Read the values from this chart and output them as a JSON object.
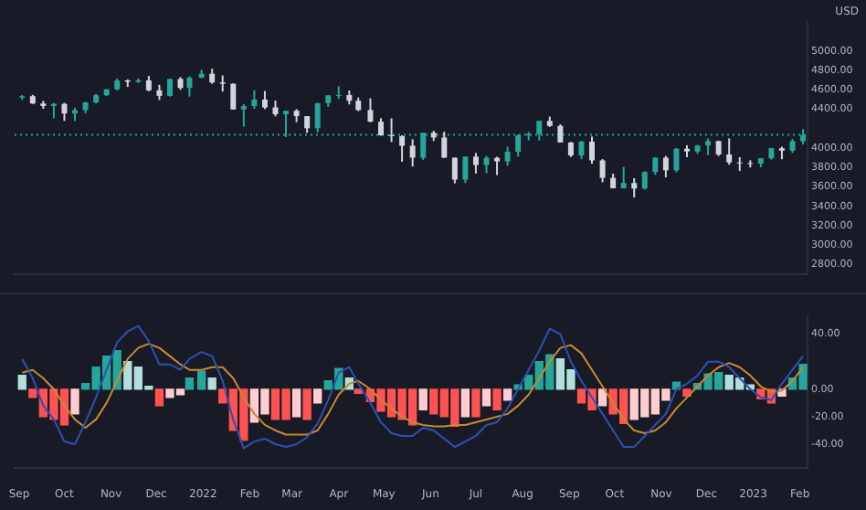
{
  "chart_data": [
    {
      "type": "candlestick",
      "ylabel": "USD",
      "tick_labels": "y",
      "grid": false,
      "x": [
        "2021-09-03",
        "2021-09-10",
        "2021-09-17",
        "2021-09-24",
        "2021-10-01",
        "2021-10-08",
        "2021-10-15",
        "2021-10-22",
        "2021-10-29",
        "2021-11-05",
        "2021-11-12",
        "2021-11-19",
        "2021-11-26",
        "2021-12-03",
        "2021-12-10",
        "2021-12-17",
        "2021-12-23",
        "2021-12-31",
        "2022-01-07",
        "2022-01-14",
        "2022-01-21",
        "2022-01-28",
        "2022-02-04",
        "2022-02-11",
        "2022-02-18",
        "2022-02-25",
        "2022-03-04",
        "2022-03-11",
        "2022-03-18",
        "2022-03-25",
        "2022-04-01",
        "2022-04-08",
        "2022-04-14",
        "2022-04-22",
        "2022-04-29",
        "2022-05-06",
        "2022-05-13",
        "2022-05-20",
        "2022-05-27",
        "2022-06-03",
        "2022-06-10",
        "2022-06-17",
        "2022-06-24",
        "2022-07-01",
        "2022-07-08",
        "2022-07-15",
        "2022-07-22",
        "2022-07-29",
        "2022-08-05",
        "2022-08-12",
        "2022-08-19",
        "2022-08-26",
        "2022-09-02",
        "2022-09-09",
        "2022-09-16",
        "2022-09-23",
        "2022-09-30",
        "2022-10-07",
        "2022-10-14",
        "2022-10-21",
        "2022-10-28",
        "2022-11-04",
        "2022-11-11",
        "2022-11-18",
        "2022-11-25",
        "2022-12-02",
        "2022-12-09",
        "2022-12-16",
        "2022-12-23",
        "2022-12-30",
        "2023-01-06",
        "2023-01-13",
        "2023-01-20",
        "2023-01-27",
        "2023-02-03"
      ],
      "ohlc": [
        [
          4520,
          4546,
          4495,
          4535
        ],
        [
          4535,
          4549,
          4455,
          4459
        ],
        [
          4459,
          4486,
          4405,
          4433
        ],
        [
          4433,
          4465,
          4306,
          4455
        ],
        [
          4455,
          4466,
          4280,
          4357
        ],
        [
          4357,
          4415,
          4278,
          4391
        ],
        [
          4391,
          4475,
          4360,
          4471
        ],
        [
          4471,
          4559,
          4460,
          4545
        ],
        [
          4545,
          4608,
          4536,
          4605
        ],
        [
          4605,
          4718,
          4595,
          4697
        ],
        [
          4697,
          4708,
          4630,
          4683
        ],
        [
          4683,
          4717,
          4672,
          4698
        ],
        [
          4698,
          4744,
          4585,
          4595
        ],
        [
          4595,
          4652,
          4495,
          4538
        ],
        [
          4538,
          4713,
          4530,
          4712
        ],
        [
          4712,
          4731,
          4600,
          4620
        ],
        [
          4620,
          4740,
          4530,
          4725
        ],
        [
          4725,
          4808,
          4720,
          4766
        ],
        [
          4766,
          4818,
          4662,
          4677
        ],
        [
          4677,
          4749,
          4582,
          4663
        ],
        [
          4663,
          4666,
          4395,
          4398
        ],
        [
          4398,
          4453,
          4222,
          4432
        ],
        [
          4432,
          4595,
          4405,
          4500
        ],
        [
          4500,
          4588,
          4401,
          4419
        ],
        [
          4419,
          4490,
          4327,
          4349
        ],
        [
          4349,
          4385,
          4114,
          4385
        ],
        [
          4385,
          4401,
          4267,
          4329
        ],
        [
          4329,
          4330,
          4157,
          4204
        ],
        [
          4204,
          4465,
          4161,
          4463
        ],
        [
          4463,
          4546,
          4424,
          4543
        ],
        [
          4543,
          4637,
          4507,
          4546
        ],
        [
          4546,
          4593,
          4450,
          4488
        ],
        [
          4488,
          4521,
          4381,
          4392
        ],
        [
          4392,
          4513,
          4267,
          4272
        ],
        [
          4272,
          4308,
          4128,
          4132
        ],
        [
          4132,
          4307,
          4062,
          4123
        ],
        [
          4123,
          4132,
          3859,
          4024
        ],
        [
          4024,
          4091,
          3810,
          3901
        ],
        [
          3901,
          4158,
          3876,
          4158
        ],
        [
          4158,
          4178,
          4074,
          4109
        ],
        [
          4109,
          4168,
          3900,
          3901
        ],
        [
          3901,
          3902,
          3636,
          3675
        ],
        [
          3675,
          3914,
          3639,
          3912
        ],
        [
          3912,
          3950,
          3738,
          3825
        ],
        [
          3825,
          3919,
          3742,
          3899
        ],
        [
          3899,
          3911,
          3722,
          3863
        ],
        [
          3863,
          4013,
          3818,
          3962
        ],
        [
          3962,
          4140,
          3911,
          4130
        ],
        [
          4130,
          4167,
          4080,
          4145
        ],
        [
          4145,
          4281,
          4079,
          4280
        ],
        [
          4280,
          4325,
          4218,
          4228
        ],
        [
          4228,
          4245,
          4057,
          4058
        ],
        [
          4058,
          4062,
          3907,
          3924
        ],
        [
          3924,
          4076,
          3886,
          4067
        ],
        [
          4067,
          4119,
          3838,
          3873
        ],
        [
          3873,
          3886,
          3647,
          3693
        ],
        [
          3693,
          3736,
          3584,
          3586
        ],
        [
          3586,
          3806,
          3584,
          3640
        ],
        [
          3640,
          3689,
          3491,
          3583
        ],
        [
          3583,
          3762,
          3573,
          3753
        ],
        [
          3753,
          3905,
          3725,
          3901
        ],
        [
          3901,
          3920,
          3698,
          3771
        ],
        [
          3771,
          4001,
          3751,
          3993
        ],
        [
          3993,
          4029,
          3906,
          3965
        ],
        [
          3965,
          4034,
          3940,
          4026
        ],
        [
          4026,
          4100,
          3928,
          4072
        ],
        [
          4072,
          4076,
          3918,
          3934
        ],
        [
          3934,
          4100,
          3828,
          3852
        ],
        [
          3852,
          3906,
          3764,
          3845
        ],
        [
          3845,
          3875,
          3800,
          3840
        ],
        [
          3840,
          3895,
          3802,
          3895
        ],
        [
          3895,
          4003,
          3881,
          3999
        ],
        [
          3999,
          4015,
          3885,
          3973
        ],
        [
          3973,
          4094,
          3950,
          4071
        ],
        [
          4071,
          4195,
          4037,
          4136
        ]
      ],
      "colors": [
        "#26a69a",
        "#d1d4dc",
        "#d1d4dc",
        "#26a69a",
        "#d1d4dc",
        "#26a69a",
        "#26a69a",
        "#26a69a",
        "#26a69a",
        "#26a69a",
        "#d1d4dc",
        "#26a69a",
        "#d1d4dc",
        "#d1d4dc",
        "#26a69a",
        "#d1d4dc",
        "#26a69a",
        "#26a69a",
        "#d1d4dc",
        "#d1d4dc",
        "#d1d4dc",
        "#26a69a",
        "#26a69a",
        "#d1d4dc",
        "#d1d4dc",
        "#26a69a",
        "#d1d4dc",
        "#d1d4dc",
        "#26a69a",
        "#26a69a",
        "#26a69a",
        "#d1d4dc",
        "#d1d4dc",
        "#d1d4dc",
        "#d1d4dc",
        "#d1d4dc",
        "#d1d4dc",
        "#d1d4dc",
        "#26a69a",
        "#d1d4dc",
        "#d1d4dc",
        "#d1d4dc",
        "#26a69a",
        "#d1d4dc",
        "#26a69a",
        "#d1d4dc",
        "#26a69a",
        "#26a69a",
        "#26a69a",
        "#26a69a",
        "#d1d4dc",
        "#d1d4dc",
        "#d1d4dc",
        "#26a69a",
        "#d1d4dc",
        "#d1d4dc",
        "#d1d4dc",
        "#26a69a",
        "#d1d4dc",
        "#26a69a",
        "#26a69a",
        "#d1d4dc",
        "#26a69a",
        "#d1d4dc",
        "#26a69a",
        "#26a69a",
        "#d1d4dc",
        "#d1d4dc",
        "#d1d4dc",
        "#d1d4dc",
        "#26a69a",
        "#26a69a",
        "#d1d4dc",
        "#26a69a",
        "#26a69a"
      ],
      "xlim": [
        "2021-08-29",
        "2023-02-06"
      ],
      "ylim": [
        2700,
        5300
      ],
      "yticks": [
        {
          "value": 2800,
          "label": "2800.00"
        },
        {
          "value": 3000,
          "label": "3000.00"
        },
        {
          "value": 3200,
          "label": "3200.00"
        },
        {
          "value": 3400,
          "label": "3400.00"
        },
        {
          "value": 3600,
          "label": "3600.00"
        },
        {
          "value": 3800,
          "label": "3800.00"
        },
        {
          "value": 4000,
          "label": "4000.00"
        },
        {
          "value": 4400,
          "label": "4400.00"
        },
        {
          "value": 4600,
          "label": "4600.00"
        },
        {
          "value": 4800,
          "label": "4800.00"
        },
        {
          "value": 5000,
          "label": "5000.00"
        }
      ],
      "ref_lines": [
        {
          "axis": "y",
          "value": 4136,
          "color": "#26a69a",
          "line_style": "dotted"
        }
      ]
    },
    {
      "type": "bar",
      "grid": false,
      "marker": "none",
      "x": [
        "2021-09-03",
        "2021-09-10",
        "2021-09-17",
        "2021-09-24",
        "2021-10-01",
        "2021-10-08",
        "2021-10-15",
        "2021-10-22",
        "2021-10-29",
        "2021-11-05",
        "2021-11-12",
        "2021-11-19",
        "2021-11-26",
        "2021-12-03",
        "2021-12-10",
        "2021-12-17",
        "2021-12-23",
        "2021-12-31",
        "2022-01-07",
        "2022-01-14",
        "2022-01-21",
        "2022-01-28",
        "2022-02-04",
        "2022-02-11",
        "2022-02-18",
        "2022-02-25",
        "2022-03-04",
        "2022-03-11",
        "2022-03-18",
        "2022-03-25",
        "2022-04-01",
        "2022-04-08",
        "2022-04-14",
        "2022-04-22",
        "2022-04-29",
        "2022-05-06",
        "2022-05-13",
        "2022-05-20",
        "2022-05-27",
        "2022-06-03",
        "2022-06-10",
        "2022-06-17",
        "2022-06-24",
        "2022-07-01",
        "2022-07-08",
        "2022-07-15",
        "2022-07-22",
        "2022-07-29",
        "2022-08-05",
        "2022-08-12",
        "2022-08-19",
        "2022-08-26",
        "2022-09-02",
        "2022-09-09",
        "2022-09-16",
        "2022-09-23",
        "2022-09-30",
        "2022-10-07",
        "2022-10-14",
        "2022-10-21",
        "2022-10-28",
        "2022-11-04",
        "2022-11-11",
        "2022-11-18",
        "2022-11-25",
        "2022-12-02",
        "2022-12-09",
        "2022-12-16",
        "2022-12-23",
        "2022-12-30",
        "2023-01-06",
        "2023-01-13",
        "2023-01-20",
        "2023-01-27",
        "2023-02-03"
      ],
      "series": [
        {
          "type": "bar",
          "values": [
            10,
            -6,
            -20,
            -22,
            -26,
            -18,
            4,
            16,
            24,
            28,
            20,
            16,
            2,
            -12,
            -6,
            -4,
            8,
            13,
            8,
            -10,
            -30,
            -37,
            -24,
            -18,
            -22,
            -22,
            -20,
            -22,
            -10,
            6,
            15,
            8,
            -3,
            -9,
            -16,
            -20,
            -22,
            -26,
            -15,
            -18,
            -20,
            -27,
            -20,
            -20,
            -12,
            -15,
            -8,
            3,
            10,
            20,
            25,
            22,
            14,
            -10,
            -15,
            -12,
            -18,
            -25,
            -22,
            -20,
            -18,
            -8,
            5,
            -5,
            4,
            11,
            12,
            10,
            8,
            3,
            -7,
            -10,
            -5,
            8,
            18
          ],
          "colors": [
            "#b2dfdb",
            "#ff5252",
            "#ff5252",
            "#ff5252",
            "#ff5252",
            "#ffcdd2",
            "#26a69a",
            "#26a69a",
            "#26a69a",
            "#26a69a",
            "#b2dfdb",
            "#b2dfdb",
            "#b2dfdb",
            "#ff5252",
            "#ffcdd2",
            "#ffcdd2",
            "#26a69a",
            "#26a69a",
            "#b2dfdb",
            "#ff5252",
            "#ff5252",
            "#ff5252",
            "#ffcdd2",
            "#ffcdd2",
            "#ff5252",
            "#ff5252",
            "#ffcdd2",
            "#ff5252",
            "#ffcdd2",
            "#26a69a",
            "#26a69a",
            "#b2dfdb",
            "#ff5252",
            "#ff5252",
            "#ff5252",
            "#ff5252",
            "#ff5252",
            "#ff5252",
            "#ffcdd2",
            "#ff5252",
            "#ff5252",
            "#ff5252",
            "#ffcdd2",
            "#ff5252",
            "#ffcdd2",
            "#ff5252",
            "#ffcdd2",
            "#26a69a",
            "#26a69a",
            "#26a69a",
            "#26a69a",
            "#b2dfdb",
            "#b2dfdb",
            "#ff5252",
            "#ff5252",
            "#ffcdd2",
            "#ff5252",
            "#ff5252",
            "#ffcdd2",
            "#ffcdd2",
            "#ffcdd2",
            "#ffcdd2",
            "#26a69a",
            "#ff5252",
            "#26a69a",
            "#26a69a",
            "#26a69a",
            "#b2dfdb",
            "#b2dfdb",
            "#b2dfdb",
            "#ff5252",
            "#ff5252",
            "#ffcdd2",
            "#26a69a",
            "#26a69a"
          ]
        },
        {
          "type": "line",
          "color": "#2f4fb5",
          "values": [
            22,
            8,
            -12,
            -22,
            -38,
            -40,
            -24,
            -6,
            14,
            34,
            42,
            46,
            35,
            18,
            18,
            14,
            22,
            27,
            24,
            6,
            -22,
            -43,
            -38,
            -36,
            -40,
            -42,
            -40,
            -35,
            -25,
            -8,
            12,
            16,
            4,
            -10,
            -24,
            -32,
            -34,
            -34,
            -28,
            -30,
            -36,
            -42,
            -38,
            -34,
            -26,
            -24,
            -14,
            0,
            14,
            28,
            44,
            40,
            20,
            6,
            -6,
            -18,
            -30,
            -42,
            -42,
            -34,
            -26,
            -18,
            0,
            4,
            10,
            20,
            20,
            16,
            8,
            0,
            -6,
            -8,
            4,
            14,
            24
          ]
        },
        {
          "type": "line",
          "color": "#c8892f",
          "values": [
            12,
            14,
            8,
            0,
            -12,
            -22,
            -28,
            -22,
            -10,
            6,
            22,
            30,
            33,
            30,
            24,
            18,
            14,
            14,
            16,
            16,
            8,
            -6,
            -18,
            -26,
            -30,
            -33,
            -33,
            -33,
            -30,
            -18,
            -4,
            4,
            6,
            0,
            -8,
            -14,
            -20,
            -24,
            -26,
            -27,
            -27,
            -26,
            -26,
            -24,
            -22,
            -20,
            -18,
            -12,
            -4,
            8,
            20,
            30,
            32,
            26,
            14,
            2,
            -10,
            -22,
            -30,
            -32,
            -30,
            -24,
            -14,
            -6,
            2,
            10,
            16,
            19,
            16,
            10,
            2,
            -2,
            -1,
            6,
            16
          ]
        }
      ],
      "xlim": [
        "2021-08-29",
        "2023-02-06"
      ],
      "xticks": [
        {
          "value": "2021-09-01",
          "label": "Sep"
        },
        {
          "value": "2021-10-01",
          "label": "Oct"
        },
        {
          "value": "2021-11-01",
          "label": "Nov"
        },
        {
          "value": "2021-12-01",
          "label": "Dec"
        },
        {
          "value": "2022-01-01",
          "label": "2022"
        },
        {
          "value": "2022-02-01",
          "label": "Feb"
        },
        {
          "value": "2022-03-01",
          "label": "Mar"
        },
        {
          "value": "2022-04-01",
          "label": "Apr"
        },
        {
          "value": "2022-05-01",
          "label": "May"
        },
        {
          "value": "2022-06-01",
          "label": "Jun"
        },
        {
          "value": "2022-07-01",
          "label": "Jul"
        },
        {
          "value": "2022-08-01",
          "label": "Aug"
        },
        {
          "value": "2022-09-01",
          "label": "Sep"
        },
        {
          "value": "2022-10-01",
          "label": "Oct"
        },
        {
          "value": "2022-11-01",
          "label": "Nov"
        },
        {
          "value": "2022-12-01",
          "label": "Dec"
        },
        {
          "value": "2023-01-01",
          "label": "2023"
        },
        {
          "value": "2023-02-01",
          "label": "Feb"
        }
      ],
      "ylim": [
        -57,
        53
      ],
      "yticks": [
        {
          "value": -40,
          "label": "-40.00"
        },
        {
          "value": -20,
          "label": "-20.00"
        },
        {
          "value": 0,
          "label": "0.00"
        },
        {
          "value": 40,
          "label": "40.00"
        }
      ]
    }
  ]
}
